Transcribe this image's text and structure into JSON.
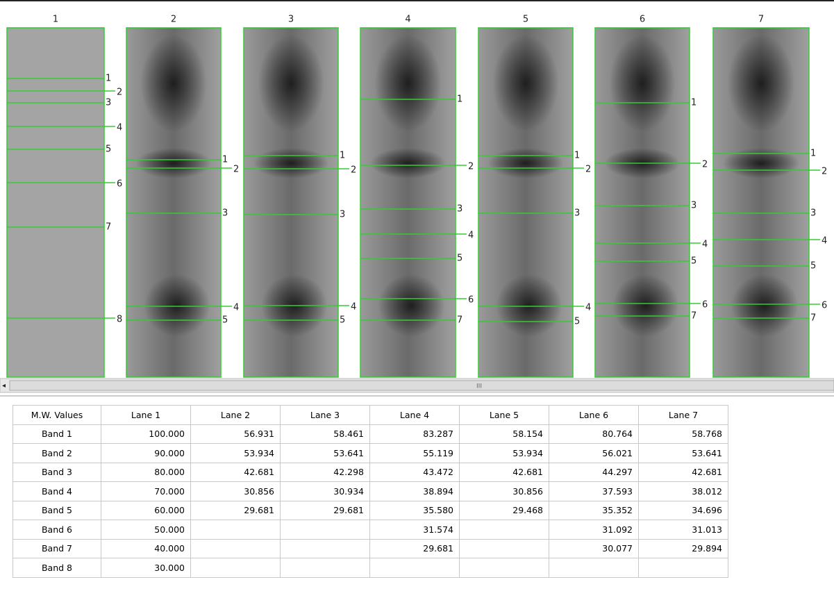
{
  "lanes": [
    {
      "label": "1",
      "bands": [
        "1",
        "2",
        "3",
        "4",
        "5",
        "6",
        "7",
        "8"
      ]
    },
    {
      "label": "2",
      "bands": [
        "1",
        "2",
        "3",
        "4",
        "5"
      ]
    },
    {
      "label": "3",
      "bands": [
        "1",
        "2",
        "3",
        "4",
        "5"
      ]
    },
    {
      "label": "4",
      "bands": [
        "1",
        "2",
        "3",
        "4",
        "5",
        "6",
        "7"
      ]
    },
    {
      "label": "5",
      "bands": [
        "1",
        "2",
        "3",
        "4",
        "5"
      ]
    },
    {
      "label": "6",
      "bands": [
        "1",
        "2",
        "3",
        "4",
        "5",
        "6",
        "7"
      ]
    },
    {
      "label": "7",
      "bands": [
        "1",
        "2",
        "3",
        "4",
        "5",
        "6",
        "7"
      ]
    }
  ],
  "scrollbar": {
    "thumb_label": "III"
  },
  "table": {
    "header": [
      "M.W. Values",
      "Lane 1",
      "Lane 2",
      "Lane 3",
      "Lane 4",
      "Lane 5",
      "Lane 6",
      "Lane 7"
    ],
    "rows": [
      [
        "Band 1",
        "100.000",
        "56.931",
        "58.461",
        "83.287",
        "58.154",
        "80.764",
        "58.768"
      ],
      [
        "Band 2",
        "90.000",
        "53.934",
        "53.641",
        "55.119",
        "53.934",
        "56.021",
        "53.641"
      ],
      [
        "Band 3",
        "80.000",
        "42.681",
        "42.298",
        "43.472",
        "42.681",
        "44.297",
        "42.681"
      ],
      [
        "Band 4",
        "70.000",
        "30.856",
        "30.934",
        "38.894",
        "30.856",
        "37.593",
        "38.012"
      ],
      [
        "Band 5",
        "60.000",
        "29.681",
        "29.681",
        "35.580",
        "29.468",
        "35.352",
        "34.696"
      ],
      [
        "Band 6",
        "50.000",
        null,
        null,
        "31.574",
        null,
        "31.092",
        "31.013"
      ],
      [
        "Band 7",
        "40.000",
        null,
        null,
        "29.681",
        null,
        "30.077",
        "29.894"
      ],
      [
        "Band 8",
        "30.000",
        null,
        null,
        null,
        null,
        null,
        null
      ]
    ]
  }
}
